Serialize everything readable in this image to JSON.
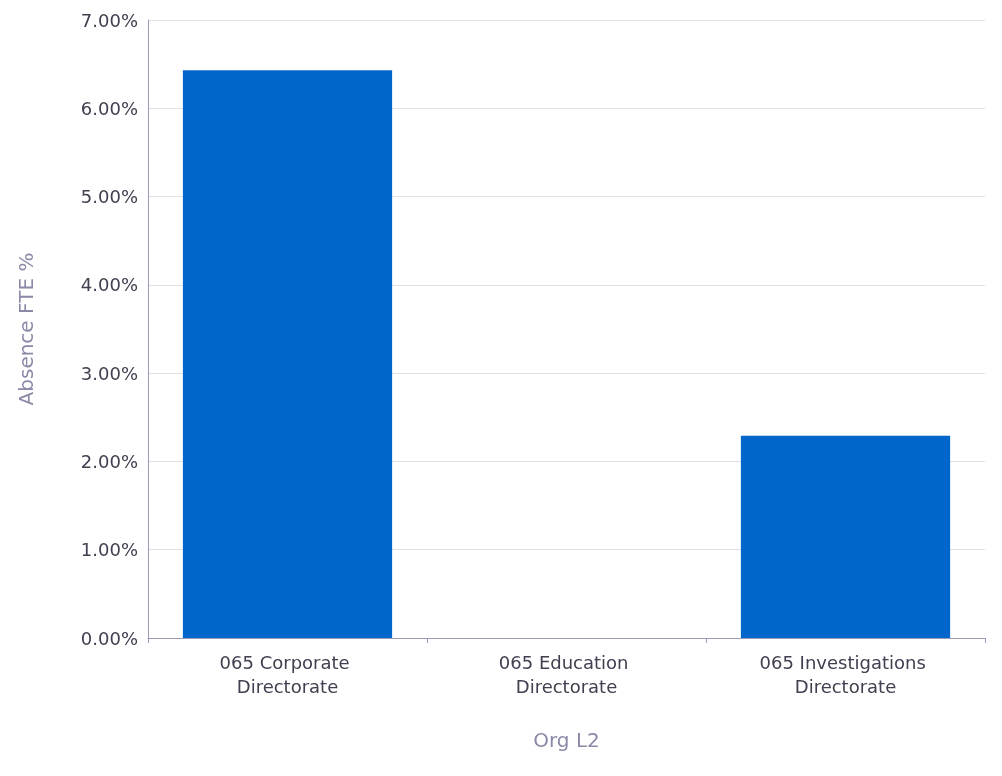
{
  "chart_data": {
    "type": "bar",
    "xlabel": "Org L2",
    "ylabel": "Absence FTE %",
    "categories": [
      "065 Corporate Directorate",
      "065 Education Directorate",
      "065 Investigations Directorate"
    ],
    "series": [
      {
        "color": "#0066cc",
        "values": [
          6.43,
          0,
          2.29
        ]
      }
    ],
    "ylim": [
      0,
      7
    ],
    "yticks": [
      {
        "value": 0,
        "label": "0.00%"
      },
      {
        "value": 1,
        "label": "1.00%"
      },
      {
        "value": 2,
        "label": "2.00%"
      },
      {
        "value": 3,
        "label": "3.00%"
      },
      {
        "value": 4,
        "label": "4.00%"
      },
      {
        "value": 5,
        "label": "5.00%"
      },
      {
        "value": 6,
        "label": "6.00%"
      },
      {
        "value": 7,
        "label": "7.00%"
      }
    ],
    "grid": "y"
  }
}
